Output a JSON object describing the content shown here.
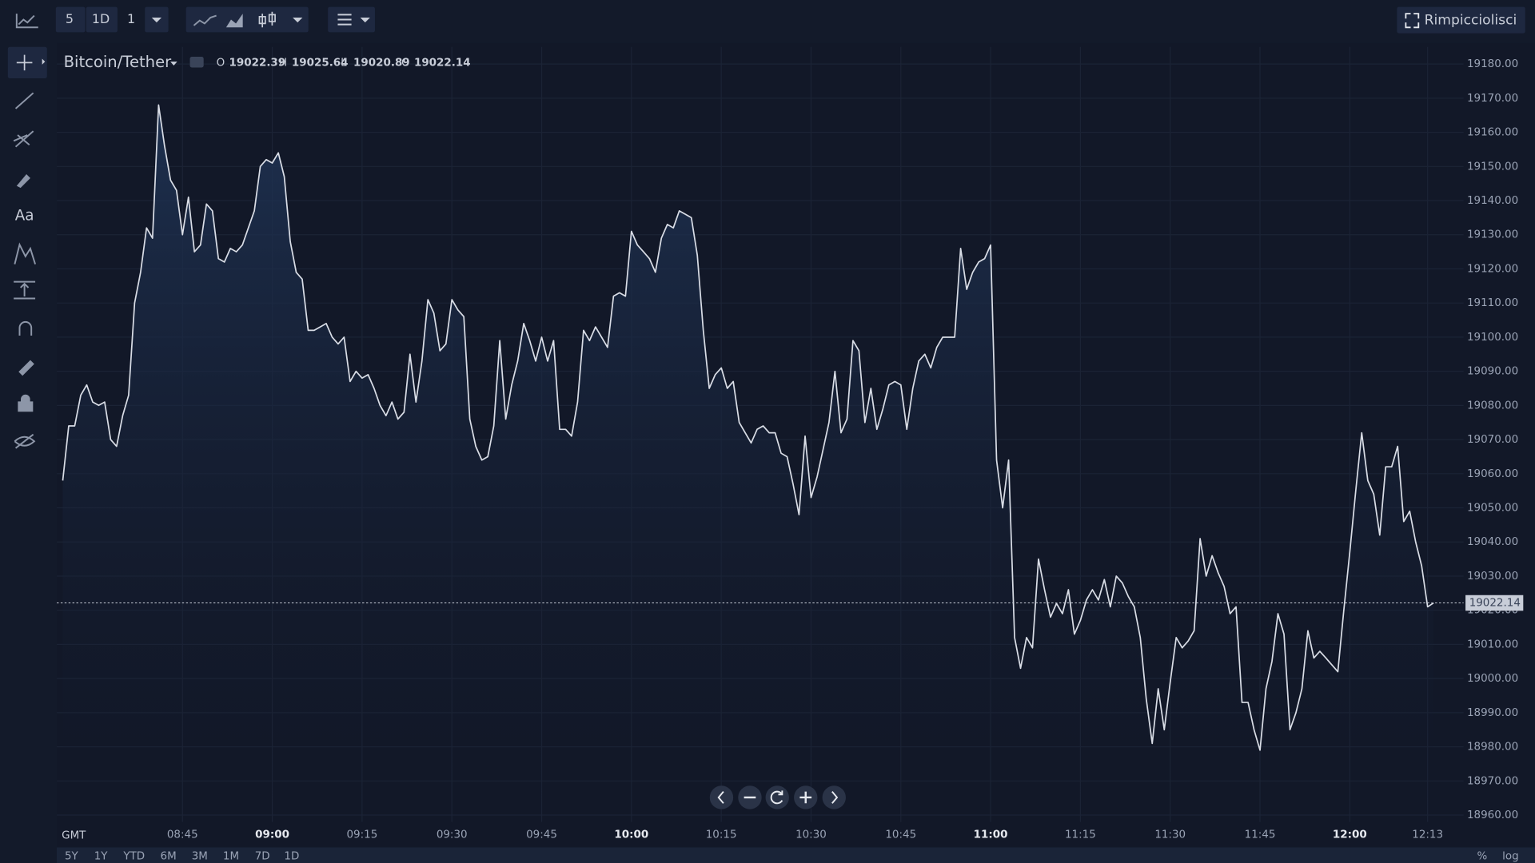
{
  "toolbar": {
    "interval_buttons": [
      "5",
      "1D"
    ],
    "multiplier": "1",
    "fullscreen_button": "Rimpicciolisci"
  },
  "sidebar": {
    "text_tool": "Aa"
  },
  "chart_data": {
    "type": "area",
    "symbol": "Bitcoin/Tether",
    "ohlc": [
      {
        "label": "O",
        "value": 19022.39
      },
      {
        "label": "H",
        "value": 19025.64
      },
      {
        "label": "L",
        "value": 19020.89
      },
      {
        "label": "C",
        "value": 19022.14
      }
    ],
    "timezone": "GMT",
    "color": "#d9dde6",
    "x": [
      "08:25",
      "08:26",
      "08:27",
      "08:28",
      "08:29",
      "08:30",
      "08:31",
      "08:32",
      "08:33",
      "08:34",
      "08:35",
      "08:36",
      "08:37",
      "08:38",
      "08:39",
      "08:40",
      "08:41",
      "08:42",
      "08:43",
      "08:44",
      "08:45",
      "08:46",
      "08:47",
      "08:48",
      "08:49",
      "08:50",
      "08:51",
      "08:52",
      "08:53",
      "08:54",
      "08:55",
      "08:56",
      "08:57",
      "08:58",
      "08:59",
      "09:00",
      "09:01",
      "09:02",
      "09:03",
      "09:04",
      "09:05",
      "09:06",
      "09:07",
      "09:08",
      "09:09",
      "09:10",
      "09:11",
      "09:12",
      "09:13",
      "09:14",
      "09:15",
      "09:16",
      "09:17",
      "09:18",
      "09:19",
      "09:20",
      "09:21",
      "09:22",
      "09:23",
      "09:24",
      "09:25",
      "09:26",
      "09:27",
      "09:28",
      "09:29",
      "09:30",
      "09:31",
      "09:32",
      "09:33",
      "09:34",
      "09:35",
      "09:36",
      "09:37",
      "09:38",
      "09:39",
      "09:40",
      "09:41",
      "09:42",
      "09:43",
      "09:44",
      "09:45",
      "09:46",
      "09:47",
      "09:48",
      "09:49",
      "09:50",
      "09:51",
      "09:52",
      "09:53",
      "09:54",
      "09:55",
      "09:56",
      "09:57",
      "09:58",
      "09:59",
      "10:00",
      "10:01",
      "10:02",
      "10:03",
      "10:04",
      "10:05",
      "10:06",
      "10:07",
      "10:08",
      "10:09",
      "10:10",
      "10:11",
      "10:12",
      "10:13",
      "10:14",
      "10:15",
      "10:16",
      "10:17",
      "10:18",
      "10:19",
      "10:20",
      "10:21",
      "10:22",
      "10:23",
      "10:24",
      "10:25",
      "10:26",
      "10:27",
      "10:28",
      "10:29",
      "10:30",
      "10:31",
      "10:32",
      "10:33",
      "10:34",
      "10:35",
      "10:36",
      "10:37",
      "10:38",
      "10:39",
      "10:40",
      "10:41",
      "10:42",
      "10:43",
      "10:44",
      "10:45",
      "10:46",
      "10:47",
      "10:48",
      "10:49",
      "10:50",
      "10:51",
      "10:52",
      "10:53",
      "10:54",
      "10:55",
      "10:56",
      "10:57",
      "10:58",
      "10:59",
      "11:00",
      "11:01",
      "11:02",
      "11:03",
      "11:04",
      "11:05",
      "11:06",
      "11:07",
      "11:08",
      "11:09",
      "11:10",
      "11:11",
      "11:12",
      "11:13",
      "11:14",
      "11:15",
      "11:16",
      "11:17",
      "11:18",
      "11:19",
      "11:20",
      "11:21",
      "11:22",
      "11:23",
      "11:24",
      "11:25",
      "11:26",
      "11:27",
      "11:28",
      "11:29",
      "11:30",
      "11:31",
      "11:32",
      "11:33",
      "11:34",
      "11:35",
      "11:36",
      "11:37",
      "11:38",
      "11:39",
      "11:40",
      "11:41",
      "11:42",
      "11:43",
      "11:44",
      "11:45",
      "11:46",
      "11:47",
      "11:48",
      "11:49",
      "11:50",
      "11:51",
      "11:52",
      "11:53",
      "11:54",
      "11:55",
      "11:56",
      "11:57",
      "11:58",
      "11:59",
      "12:00",
      "12:01",
      "12:02",
      "12:03",
      "12:04",
      "12:05",
      "12:06",
      "12:07",
      "12:08",
      "12:09",
      "12:10",
      "12:11",
      "12:12",
      "12:13",
      "12:14"
    ],
    "values": [
      19058,
      19074,
      19074,
      19083,
      19086,
      19081,
      19080,
      19081,
      19070,
      19068,
      19077,
      19083,
      19110,
      19119,
      19132,
      19129,
      19168,
      19156,
      19146,
      19143,
      19130,
      19141,
      19125,
      19127,
      19139,
      19137,
      19123,
      19122,
      19126,
      19125,
      19127,
      19132,
      19137,
      19150,
      19152,
      19151,
      19154,
      19147,
      19128,
      19119,
      19117,
      19102,
      19102,
      19103,
      19104,
      19100,
      19098,
      19100,
      19087,
      19090,
      19088,
      19089,
      19085,
      19080,
      19077,
      19081,
      19076,
      19078,
      19095,
      19081,
      19093,
      19111,
      19107,
      19096,
      19098,
      19111,
      19108,
      19106,
      19076,
      19068,
      19064,
      19065,
      19074,
      19099,
      19076,
      19086,
      19093,
      19104,
      19099,
      19093,
      19100,
      19093,
      19099,
      19073,
      19073,
      19071,
      19081,
      19102,
      19099,
      19103,
      19100,
      19097,
      19112,
      19113,
      19112,
      19131,
      19127,
      19125,
      19123,
      19119,
      19129,
      19133,
      19132,
      19137,
      19136,
      19135,
      19124,
      19102,
      19085,
      19089,
      19091,
      19085,
      19087,
      19075,
      19072,
      19069,
      19073,
      19074,
      19072,
      19072,
      19066,
      19065,
      19057,
      19048,
      19071,
      19053,
      19059,
      19067,
      19075,
      19090,
      19072,
      19076,
      19099,
      19096,
      19075,
      19085,
      19073,
      19079,
      19086,
      19087,
      19086,
      19073,
      19085,
      19093,
      19095,
      19091,
      19097,
      19100,
      19100,
      19100,
      19126,
      19114,
      19119,
      19122,
      19123,
      19127,
      19064,
      19050,
      19064,
      19012,
      19003,
      19012,
      19009,
      19035,
      19026,
      19018,
      19022,
      19019,
      19026,
      19013,
      19017,
      19023,
      19026,
      19023,
      19029,
      19021,
      19030,
      19028,
      19024,
      19021,
      19012,
      18994,
      18981,
      18997,
      18985,
      18999,
      19012,
      19009,
      19011,
      19014,
      19041,
      19030,
      19036,
      19031,
      19027,
      19019,
      19021,
      18993,
      18993,
      18985,
      18979,
      18997,
      19005,
      19019,
      19013,
      18985,
      18990,
      18997,
      19014,
      19006,
      19008,
      19006,
      19004,
      19002,
      19020,
      19037,
      19055,
      19072,
      19058,
      19054,
      19042,
      19062,
      19062,
      19068,
      19046,
      19049,
      19040,
      19033,
      19021,
      19022.14
    ],
    "xlim": [
      "08:24",
      "12:19"
    ],
    "xticks": [
      "08:45",
      "09:00",
      "09:15",
      "09:30",
      "09:45",
      "10:00",
      "10:15",
      "10:30",
      "10:45",
      "11:00",
      "11:15",
      "11:30",
      "11:45",
      "12:00",
      "12:13"
    ],
    "ylim": [
      18958,
      19185
    ],
    "yticks": [
      {
        "value": 19180,
        "label": "19180.00"
      },
      {
        "value": 19170,
        "label": "19170.00"
      },
      {
        "value": 19160,
        "label": "19160.00"
      },
      {
        "value": 19150,
        "label": "19150.00"
      },
      {
        "value": 19140,
        "label": "19140.00"
      },
      {
        "value": 19130,
        "label": "19130.00"
      },
      {
        "value": 19120,
        "label": "19120.00"
      },
      {
        "value": 19110,
        "label": "19110.00"
      },
      {
        "value": 19100,
        "label": "19100.00"
      },
      {
        "value": 19090,
        "label": "19090.00"
      },
      {
        "value": 19080,
        "label": "19080.00"
      },
      {
        "value": 19070,
        "label": "19070.00"
      },
      {
        "value": 19060,
        "label": "19060.00"
      },
      {
        "value": 19050,
        "label": "19050.00"
      },
      {
        "value": 19040,
        "label": "19040.00"
      },
      {
        "value": 19030,
        "label": "19030.00"
      },
      {
        "value": 19020,
        "label": "19020.00"
      },
      {
        "value": 19010,
        "label": "19010.00"
      },
      {
        "value": 19000,
        "label": "19000.00"
      },
      {
        "value": 18990,
        "label": "18990.00"
      },
      {
        "value": 18980,
        "label": "18980.00"
      },
      {
        "value": 18970,
        "label": "18970.00"
      },
      {
        "value": 18960,
        "label": "18960.00"
      }
    ],
    "grid": true
  },
  "range_buttons": [
    "5Y",
    "1Y",
    "YTD",
    "6M",
    "3M",
    "1M",
    "7D",
    "1D"
  ],
  "scale_options": [
    "%",
    "log"
  ]
}
